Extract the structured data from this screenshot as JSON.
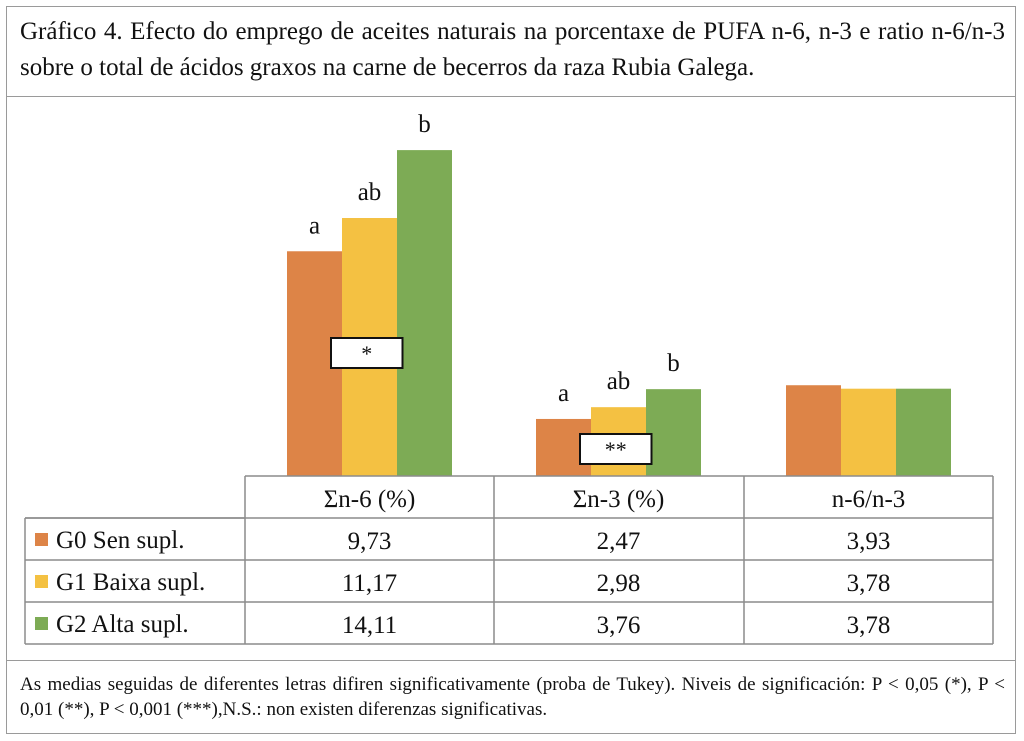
{
  "title": "Gráfico 4. Efecto do emprego de aceites naturais na porcentaxe de PUFA n-6, n-3 e ratio n-6/n-3 sobre o total de ácidos graxos na carne de becerros da raza Rubia Galega.",
  "footnote": "As medias seguidas de diferentes letras difiren significativamente (proba de Tukey). Niveis de significación: P < 0,05 (*), P < 0,01 (**), P < 0,001 (***),N.S.: non existen diferenzas significativas.",
  "colors": {
    "G0": "#dd8447",
    "G1": "#f4c142",
    "G2": "#7dab55"
  },
  "chart_data": {
    "type": "bar",
    "categories": [
      "Σn-6 (%)",
      "Σn-3 (%)",
      "n-6/n-3"
    ],
    "series": [
      {
        "name": "G0 Sen supl.",
        "color": "#dd8447",
        "values": [
          9.73,
          2.47,
          3.93
        ],
        "labels": [
          "9,73",
          "2,47",
          "3,93"
        ]
      },
      {
        "name": "G1  Baixa supl.",
        "color": "#f4c142",
        "values": [
          11.17,
          2.98,
          3.78
        ],
        "labels": [
          "11,17",
          "2,98",
          "3,78"
        ]
      },
      {
        "name": "G2 Alta supl.",
        "color": "#7dab55",
        "values": [
          14.11,
          3.76,
          3.78
        ],
        "labels": [
          "14,11",
          "3,76",
          "3,78"
        ]
      }
    ],
    "letters": [
      [
        "a",
        "ab",
        "b"
      ],
      [
        "a",
        "ab",
        "b"
      ],
      [
        "",
        "",
        ""
      ]
    ],
    "significance": [
      "*",
      "**",
      ""
    ],
    "ylim": [
      0,
      15.5
    ],
    "data_table": true
  }
}
